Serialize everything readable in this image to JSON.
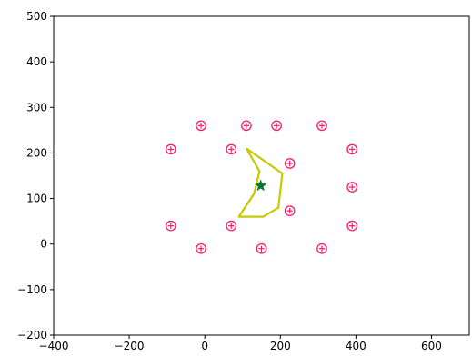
{
  "chart_data": {
    "type": "scatter",
    "title": "",
    "xlabel": "",
    "ylabel": "",
    "xlim": [
      -400,
      700
    ],
    "ylim": [
      -200,
      500
    ],
    "x_ticks": [
      -400,
      -200,
      0,
      200,
      400,
      600
    ],
    "y_ticks": [
      -200,
      -100,
      0,
      100,
      200,
      300,
      400,
      500
    ],
    "x_tick_labels": [
      "−400",
      "−200",
      "0",
      "200",
      "400",
      "600"
    ],
    "y_tick_labels": [
      "−200",
      "−100",
      "0",
      "100",
      "200",
      "300",
      "400",
      "500"
    ],
    "grid": false,
    "series": [
      {
        "kind": "markers",
        "marker": "circled-plus",
        "color": "#ff1a66",
        "points": [
          [
            -10,
            260
          ],
          [
            110,
            260
          ],
          [
            190,
            260
          ],
          [
            310,
            260
          ],
          [
            -90,
            208
          ],
          [
            70,
            208
          ],
          [
            390,
            208
          ],
          [
            225,
            177
          ],
          [
            390,
            125
          ],
          [
            225,
            73
          ],
          [
            -90,
            40
          ],
          [
            70,
            40
          ],
          [
            390,
            40
          ],
          [
            -10,
            -10
          ],
          [
            150,
            -10
          ],
          [
            310,
            -10
          ]
        ]
      },
      {
        "kind": "polygon",
        "color": "#c8c800",
        "points": [
          [
            110,
            210
          ],
          [
            205,
            155
          ],
          [
            195,
            80
          ],
          [
            155,
            60
          ],
          [
            90,
            60
          ],
          [
            130,
            110
          ],
          [
            145,
            160
          ],
          [
            110,
            210
          ]
        ]
      },
      {
        "kind": "star",
        "color": "#007a33",
        "points": [
          [
            148,
            128
          ]
        ]
      }
    ]
  }
}
